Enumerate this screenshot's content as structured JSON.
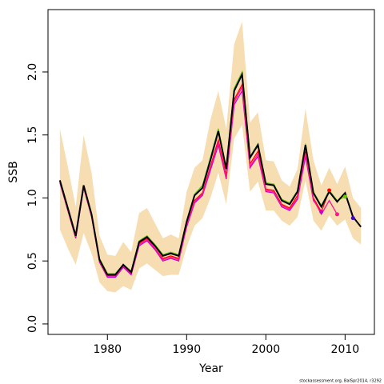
{
  "chart_data": {
    "type": "line",
    "x_label": "Year",
    "y_label": "SSB",
    "footnote": "stockassessment.org, BalSpr2014, r3292",
    "x": [
      1974,
      1975,
      1976,
      1977,
      1978,
      1979,
      1980,
      1981,
      1982,
      1983,
      1984,
      1985,
      1986,
      1987,
      1988,
      1989,
      1990,
      1991,
      1992,
      1993,
      1994,
      1995,
      1996,
      1997,
      1998,
      1999,
      2000,
      2001,
      2002,
      2003,
      2004,
      2005,
      2006,
      2007,
      2008,
      2009,
      2010,
      2011,
      2012
    ],
    "band": {
      "color": "#f7ddb2",
      "upper": [
        1.55,
        1.25,
        0.93,
        1.5,
        1.2,
        0.7,
        0.55,
        0.54,
        0.65,
        0.57,
        0.88,
        0.92,
        0.8,
        0.68,
        0.71,
        0.68,
        1.05,
        1.24,
        1.3,
        1.62,
        1.85,
        1.55,
        2.22,
        2.4,
        1.6,
        1.68,
        1.3,
        1.29,
        1.14,
        1.09,
        1.23,
        1.71,
        1.3,
        1.1,
        1.24,
        1.11,
        1.25,
        1.0,
        0.92
      ],
      "lower": [
        0.75,
        0.6,
        0.47,
        0.72,
        0.56,
        0.33,
        0.26,
        0.25,
        0.3,
        0.27,
        0.44,
        0.48,
        0.43,
        0.38,
        0.39,
        0.39,
        0.61,
        0.78,
        0.84,
        1.0,
        1.2,
        0.95,
        1.47,
        1.58,
        1.05,
        1.13,
        0.9,
        0.9,
        0.82,
        0.78,
        0.85,
        1.14,
        0.82,
        0.74,
        0.86,
        0.78,
        0.83,
        0.68,
        0.63
      ]
    },
    "series": [
      {
        "color": "#cc00cc",
        "values": [
          1.12,
          0.9,
          0.68,
          1.08,
          0.85,
          0.49,
          0.37,
          0.37,
          0.45,
          0.39,
          0.62,
          0.66,
          0.59,
          0.5,
          0.52,
          0.5,
          0.77,
          0.96,
          1.02,
          1.22,
          1.42,
          1.15,
          1.74,
          1.85,
          1.24,
          1.33,
          1.05,
          1.04,
          0.93,
          0.9,
          0.99,
          1.33,
          0.98,
          0.89,
          null,
          null,
          null,
          null,
          null
        ]
      },
      {
        "color": "#ff0000",
        "values": [
          1.13,
          0.91,
          0.69,
          1.09,
          0.86,
          0.5,
          0.38,
          0.38,
          0.46,
          0.4,
          0.64,
          0.68,
          0.6,
          0.52,
          0.54,
          0.52,
          0.78,
          0.98,
          1.04,
          1.25,
          1.46,
          1.18,
          1.78,
          1.9,
          1.27,
          1.37,
          1.07,
          1.06,
          0.95,
          0.92,
          1.02,
          1.37,
          1.0,
          0.89,
          1.06,
          null,
          null,
          null,
          null
        ]
      },
      {
        "color": "#ff1493",
        "values": [
          1.13,
          0.91,
          0.69,
          1.09,
          0.86,
          0.5,
          0.38,
          0.38,
          0.46,
          0.4,
          0.63,
          0.67,
          0.6,
          0.51,
          0.53,
          0.51,
          0.78,
          0.97,
          1.03,
          1.24,
          1.44,
          1.16,
          1.76,
          1.88,
          1.25,
          1.35,
          1.06,
          1.05,
          0.94,
          0.91,
          1.0,
          1.35,
          0.99,
          0.87,
          0.98,
          0.87,
          null,
          null,
          null
        ]
      },
      {
        "color": "#66cc00",
        "values": [
          1.14,
          0.92,
          0.7,
          1.1,
          0.87,
          0.52,
          0.4,
          0.4,
          0.47,
          0.42,
          0.66,
          0.7,
          0.63,
          0.55,
          0.57,
          0.55,
          0.82,
          1.03,
          1.1,
          1.32,
          1.55,
          1.24,
          1.87,
          2.0,
          1.33,
          1.43,
          1.12,
          1.11,
          0.99,
          0.96,
          1.06,
          1.43,
          1.05,
          0.94,
          1.06,
          0.98,
          1.01,
          null,
          null
        ]
      },
      {
        "color": "#4400cc",
        "values": [
          1.14,
          0.92,
          0.7,
          1.1,
          0.87,
          0.51,
          0.39,
          0.39,
          0.47,
          0.41,
          0.65,
          0.69,
          0.62,
          0.54,
          0.56,
          0.54,
          0.81,
          1.02,
          1.08,
          1.3,
          1.53,
          1.23,
          1.85,
          1.98,
          1.32,
          1.42,
          1.11,
          1.1,
          0.98,
          0.95,
          1.05,
          1.42,
          1.04,
          0.93,
          1.05,
          0.97,
          1.04,
          0.84,
          null
        ]
      },
      {
        "color": "#000000",
        "values": [
          1.14,
          0.92,
          0.7,
          1.1,
          0.87,
          0.51,
          0.39,
          0.39,
          0.47,
          0.41,
          0.65,
          0.69,
          0.62,
          0.54,
          0.56,
          0.54,
          0.81,
          1.02,
          1.08,
          1.3,
          1.53,
          1.23,
          1.85,
          1.98,
          1.32,
          1.42,
          1.11,
          1.1,
          0.98,
          0.95,
          1.05,
          1.42,
          1.04,
          0.93,
          1.05,
          0.97,
          1.04,
          0.85,
          0.77
        ]
      }
    ],
    "xlim": [
      1972.5,
      2013.7
    ],
    "xticks": [
      1980,
      1990,
      2000,
      2010
    ],
    "ylim": [
      -0.083,
      2.495
    ],
    "yticks": [
      {
        "value": 0,
        "label": "0.0"
      },
      0.5,
      {
        "value": 1,
        "label": "1.0"
      },
      1.5,
      {
        "value": 2,
        "label": "2.0"
      }
    ]
  }
}
